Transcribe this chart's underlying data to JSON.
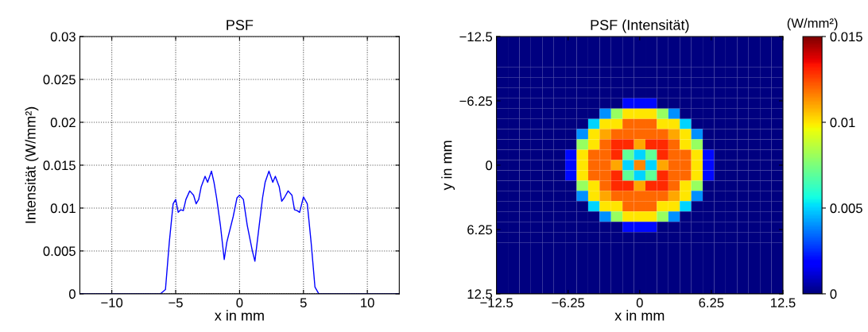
{
  "chart_data": [
    {
      "type": "line",
      "title": "PSF",
      "xlabel": "x in mm",
      "ylabel": "Intensität (W/mm²)",
      "grid": true,
      "line_style": "solid",
      "marker": "none",
      "xlim": [
        -12.5,
        12.5
      ],
      "xticks": [
        {
          "value": -10,
          "label": "−10"
        },
        {
          "value": -5,
          "label": "−5"
        },
        0,
        5,
        10
      ],
      "ylim": [
        0,
        0.03
      ],
      "yticks": [
        0,
        0.005,
        0.01,
        0.015,
        0.02,
        0.025,
        0.03
      ],
      "series": [
        {
          "color": "#0000ff",
          "x": [
            -12.5,
            -6.2,
            -5.8,
            -5.5,
            -5.2,
            -5.0,
            -4.8,
            -4.6,
            -4.4,
            -4.2,
            -3.9,
            -3.6,
            -3.4,
            -3.2,
            -3.0,
            -2.7,
            -2.5,
            -2.2,
            -2.0,
            -1.8,
            -1.5,
            -1.2,
            -1.0,
            -0.5,
            -0.2,
            0.0,
            0.3,
            0.6,
            1.0,
            1.2,
            1.5,
            1.8,
            2.0,
            2.3,
            2.6,
            2.8,
            3.1,
            3.3,
            3.5,
            3.8,
            4.1,
            4.3,
            4.5,
            4.7,
            5.0,
            5.3,
            5.6,
            5.9,
            6.2,
            12.5
          ],
          "values": [
            0,
            0,
            0.0005,
            0.006,
            0.0105,
            0.011,
            0.0095,
            0.0098,
            0.0097,
            0.011,
            0.012,
            0.0115,
            0.0105,
            0.011,
            0.0125,
            0.0137,
            0.013,
            0.0143,
            0.013,
            0.0112,
            0.008,
            0.004,
            0.006,
            0.009,
            0.0112,
            0.0115,
            0.011,
            0.008,
            0.005,
            0.0038,
            0.0075,
            0.0112,
            0.013,
            0.0143,
            0.013,
            0.0137,
            0.0125,
            0.0108,
            0.0112,
            0.012,
            0.0115,
            0.0098,
            0.0097,
            0.0095,
            0.0113,
            0.0105,
            0.006,
            0.0008,
            0,
            0
          ]
        }
      ]
    },
    {
      "type": "heatmap",
      "title": "PSF (Intensität)",
      "xlabel": "x in mm",
      "ylabel": "y in mm",
      "clabel": "(W/mm²)",
      "xlim": [
        -12.5,
        12.5
      ],
      "xticks": [
        {
          "value": -12.5,
          "label": "−12.5"
        },
        {
          "value": -6.25,
          "label": "−6.25"
        },
        0,
        6.25,
        12.5
      ],
      "ylim": [
        12.5,
        -12.5
      ],
      "yticks": [
        {
          "value": -12.5,
          "label": "−12.5"
        },
        {
          "value": -6.25,
          "label": "−6.25"
        },
        0,
        6.25,
        12.5
      ],
      "clim": [
        0,
        0.015
      ],
      "cticks": [
        0,
        0.005,
        0.01,
        0.015
      ],
      "cells": [
        [
          0,
          0,
          0,
          0,
          0,
          0,
          0,
          0,
          0,
          0,
          0,
          0,
          0,
          0,
          0,
          0,
          0,
          0,
          0,
          0,
          0,
          0,
          0,
          0,
          0
        ],
        [
          0,
          0,
          0,
          0,
          0,
          0,
          0,
          0,
          0,
          0,
          0,
          0,
          0,
          0,
          0,
          0,
          0,
          0,
          0,
          0,
          0,
          0,
          0,
          0,
          0
        ],
        [
          0,
          0,
          0,
          0,
          0,
          0,
          0,
          0,
          0,
          0,
          0,
          0,
          0,
          0,
          0,
          0,
          0,
          0,
          0,
          0,
          0,
          0,
          0,
          0,
          0
        ],
        [
          0,
          0,
          0,
          0,
          0,
          0,
          0,
          0,
          0,
          0,
          0,
          0,
          0,
          0,
          0,
          0,
          0,
          0,
          0,
          0,
          0,
          0,
          0,
          0,
          0
        ],
        [
          0,
          0,
          0,
          0,
          0,
          0,
          0,
          0,
          0,
          0,
          0,
          0,
          0,
          0,
          0,
          0,
          0,
          0,
          0,
          0,
          0,
          0,
          0,
          0,
          0
        ],
        [
          0,
          0,
          0,
          0,
          0,
          0,
          0,
          0,
          0,
          0,
          0,
          0,
          0,
          0,
          0,
          0,
          0,
          0,
          0,
          0,
          0,
          0,
          0,
          0,
          0
        ],
        [
          0,
          0,
          0,
          0,
          0,
          0,
          0,
          0,
          0,
          0,
          0,
          0.002,
          0.002,
          0.002,
          0,
          0,
          0,
          0,
          0,
          0,
          0,
          0,
          0,
          0,
          0
        ],
        [
          0,
          0,
          0,
          0,
          0,
          0,
          0,
          0,
          0,
          0.004,
          0.008,
          0.01,
          0.01,
          0.01,
          0.008,
          0.004,
          0,
          0,
          0,
          0,
          0,
          0,
          0,
          0,
          0
        ],
        [
          0,
          0,
          0,
          0,
          0,
          0,
          0,
          0,
          0.005,
          0.01,
          0.01,
          0.012,
          0.012,
          0.012,
          0.01,
          0.01,
          0.005,
          0,
          0,
          0,
          0,
          0,
          0,
          0,
          0
        ],
        [
          0,
          0,
          0,
          0,
          0,
          0,
          0,
          0.004,
          0.01,
          0.011,
          0.012,
          0.012,
          0.012,
          0.012,
          0.012,
          0.011,
          0.01,
          0.004,
          0,
          0,
          0,
          0,
          0,
          0,
          0
        ],
        [
          0,
          0,
          0,
          0,
          0,
          0,
          0,
          0.008,
          0.01,
          0.012,
          0.013,
          0.013,
          0.011,
          0.013,
          0.013,
          0.012,
          0.01,
          0.008,
          0,
          0,
          0,
          0,
          0,
          0,
          0
        ],
        [
          0,
          0,
          0,
          0,
          0,
          0,
          0.002,
          0.01,
          0.012,
          0.012,
          0.013,
          0.007,
          0.005,
          0.007,
          0.013,
          0.012,
          0.012,
          0.01,
          0.002,
          0,
          0,
          0,
          0,
          0,
          0
        ],
        [
          0,
          0,
          0,
          0,
          0,
          0,
          0.002,
          0.01,
          0.012,
          0.012,
          0.011,
          0.005,
          0.0115,
          0.005,
          0.011,
          0.012,
          0.012,
          0.01,
          0.002,
          0,
          0,
          0,
          0,
          0,
          0
        ],
        [
          0,
          0,
          0,
          0,
          0,
          0,
          0.002,
          0.01,
          0.012,
          0.012,
          0.013,
          0.007,
          0.005,
          0.007,
          0.013,
          0.012,
          0.012,
          0.01,
          0.002,
          0,
          0,
          0,
          0,
          0,
          0
        ],
        [
          0,
          0,
          0,
          0,
          0,
          0,
          0,
          0.008,
          0.01,
          0.012,
          0.013,
          0.013,
          0.011,
          0.013,
          0.013,
          0.012,
          0.01,
          0.008,
          0,
          0,
          0,
          0,
          0,
          0,
          0
        ],
        [
          0,
          0,
          0,
          0,
          0,
          0,
          0,
          0.004,
          0.01,
          0.011,
          0.012,
          0.012,
          0.012,
          0.012,
          0.012,
          0.011,
          0.01,
          0.004,
          0,
          0,
          0,
          0,
          0,
          0,
          0
        ],
        [
          0,
          0,
          0,
          0,
          0,
          0,
          0,
          0,
          0.005,
          0.01,
          0.01,
          0.012,
          0.012,
          0.012,
          0.01,
          0.01,
          0.005,
          0,
          0,
          0,
          0,
          0,
          0,
          0,
          0
        ],
        [
          0,
          0,
          0,
          0,
          0,
          0,
          0,
          0,
          0,
          0.004,
          0.008,
          0.01,
          0.01,
          0.01,
          0.008,
          0.004,
          0,
          0,
          0,
          0,
          0,
          0,
          0,
          0,
          0
        ],
        [
          0,
          0,
          0,
          0,
          0,
          0,
          0,
          0,
          0,
          0,
          0,
          0.002,
          0.002,
          0.002,
          0,
          0,
          0,
          0,
          0,
          0,
          0,
          0,
          0,
          0,
          0
        ],
        [
          0,
          0,
          0,
          0,
          0,
          0,
          0,
          0,
          0,
          0,
          0,
          0,
          0,
          0,
          0,
          0,
          0,
          0,
          0,
          0,
          0,
          0,
          0,
          0,
          0
        ],
        [
          0,
          0,
          0,
          0,
          0,
          0,
          0,
          0,
          0,
          0,
          0,
          0,
          0,
          0,
          0,
          0,
          0,
          0,
          0,
          0,
          0,
          0,
          0,
          0,
          0
        ],
        [
          0,
          0,
          0,
          0,
          0,
          0,
          0,
          0,
          0,
          0,
          0,
          0,
          0,
          0,
          0,
          0,
          0,
          0,
          0,
          0,
          0,
          0,
          0,
          0,
          0
        ],
        [
          0,
          0,
          0,
          0,
          0,
          0,
          0,
          0,
          0,
          0,
          0,
          0,
          0,
          0,
          0,
          0,
          0,
          0,
          0,
          0,
          0,
          0,
          0,
          0,
          0
        ],
        [
          0,
          0,
          0,
          0,
          0,
          0,
          0,
          0,
          0,
          0,
          0,
          0,
          0,
          0,
          0,
          0,
          0,
          0,
          0,
          0,
          0,
          0,
          0,
          0,
          0
        ],
        [
          0,
          0,
          0,
          0,
          0,
          0,
          0,
          0,
          0,
          0,
          0,
          0,
          0,
          0,
          0,
          0,
          0,
          0,
          0,
          0,
          0,
          0,
          0,
          0,
          0
        ]
      ]
    }
  ]
}
